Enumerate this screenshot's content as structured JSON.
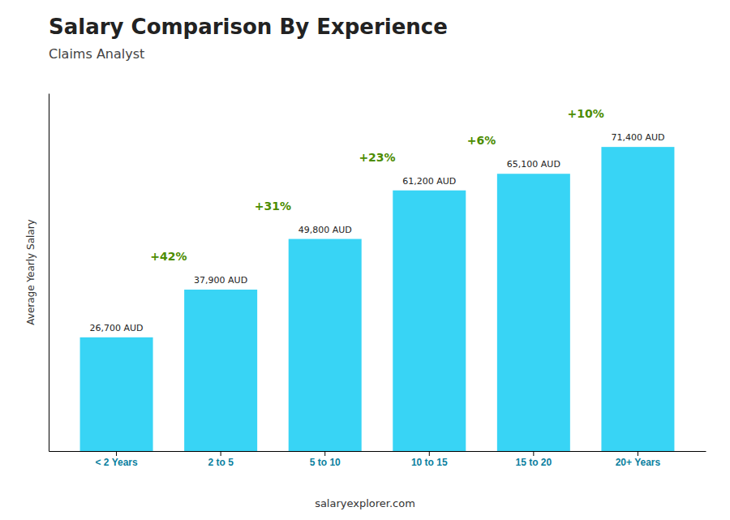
{
  "chart_data": {
    "type": "bar",
    "title": "Salary Comparison By Experience",
    "subtitle": "Claims Analyst",
    "categories": [
      "< 2 Years",
      "2 to 5",
      "5 to 10",
      "10 to 15",
      "15 to 20",
      "20+ Years"
    ],
    "values": [
      26700,
      37900,
      49800,
      61200,
      65100,
      71400
    ],
    "value_labels": [
      "26,700 AUD",
      "37,900 AUD",
      "49,800 AUD",
      "61,200 AUD",
      "65,100 AUD",
      "71,400 AUD"
    ],
    "data_labels": true,
    "annotations": [
      "+42%",
      "+31%",
      "+23%",
      "+6%",
      "+10%"
    ],
    "ylabel": "Average Yearly Salary",
    "footer": "salaryexplorer.com",
    "color": "#38D4F5",
    "ylim": [
      0,
      84000
    ],
    "grid": false,
    "tick_labels": "x"
  }
}
